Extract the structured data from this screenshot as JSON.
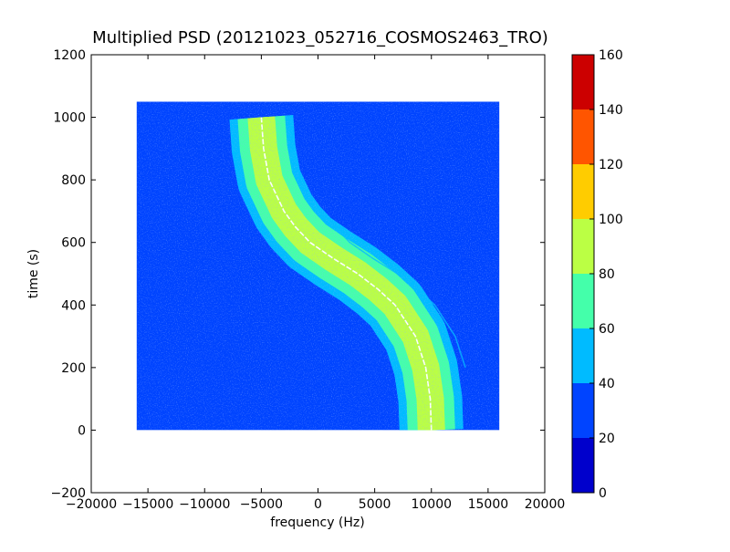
{
  "chart_data": {
    "type": "heatmap",
    "title": "Multiplied PSD (20121023_052716_COSMOS2463_TRO)",
    "xlabel": "frequency (Hz)",
    "ylabel": "time (s)",
    "xlim": [
      -20000,
      20000
    ],
    "ylim": [
      -200,
      1200
    ],
    "xticks": [
      -20000,
      -15000,
      -10000,
      -5000,
      0,
      5000,
      10000,
      15000,
      20000
    ],
    "yticks": [
      -200,
      0,
      200,
      400,
      600,
      800,
      1000,
      1200
    ],
    "grid": false,
    "data_extent": {
      "x": [
        -16000,
        16000
      ],
      "y": [
        0,
        1050
      ]
    },
    "signal_track": [
      {
        "t": 0,
        "f": 10000
      },
      {
        "t": 100,
        "f": 9900
      },
      {
        "t": 200,
        "f": 9500
      },
      {
        "t": 300,
        "f": 8600
      },
      {
        "t": 400,
        "f": 6800
      },
      {
        "t": 450,
        "f": 5300
      },
      {
        "t": 500,
        "f": 3500
      },
      {
        "t": 550,
        "f": 1300
      },
      {
        "t": 600,
        "f": -700
      },
      {
        "t": 650,
        "f": -2000
      },
      {
        "t": 700,
        "f": -3000
      },
      {
        "t": 800,
        "f": -4300
      },
      {
        "t": 900,
        "f": -4800
      },
      {
        "t": 1000,
        "f": -5000
      }
    ],
    "secondary_track_offset_hz": 3500,
    "colorbar": {
      "range": [
        0,
        160
      ],
      "ticks": [
        0,
        20,
        40,
        60,
        80,
        100,
        120,
        140,
        160
      ],
      "bands": [
        {
          "from": 0,
          "to": 20,
          "color": "#0000cc"
        },
        {
          "from": 20,
          "to": 40,
          "color": "#0044ff"
        },
        {
          "from": 40,
          "to": 60,
          "color": "#00bbff"
        },
        {
          "from": 60,
          "to": 80,
          "color": "#44ffaa"
        },
        {
          "from": 80,
          "to": 100,
          "color": "#bbff44"
        },
        {
          "from": 100,
          "to": 120,
          "color": "#ffcc00"
        },
        {
          "from": 120,
          "to": 140,
          "color": "#ff5500"
        },
        {
          "from": 140,
          "to": 160,
          "color": "#cc0000"
        }
      ]
    }
  }
}
